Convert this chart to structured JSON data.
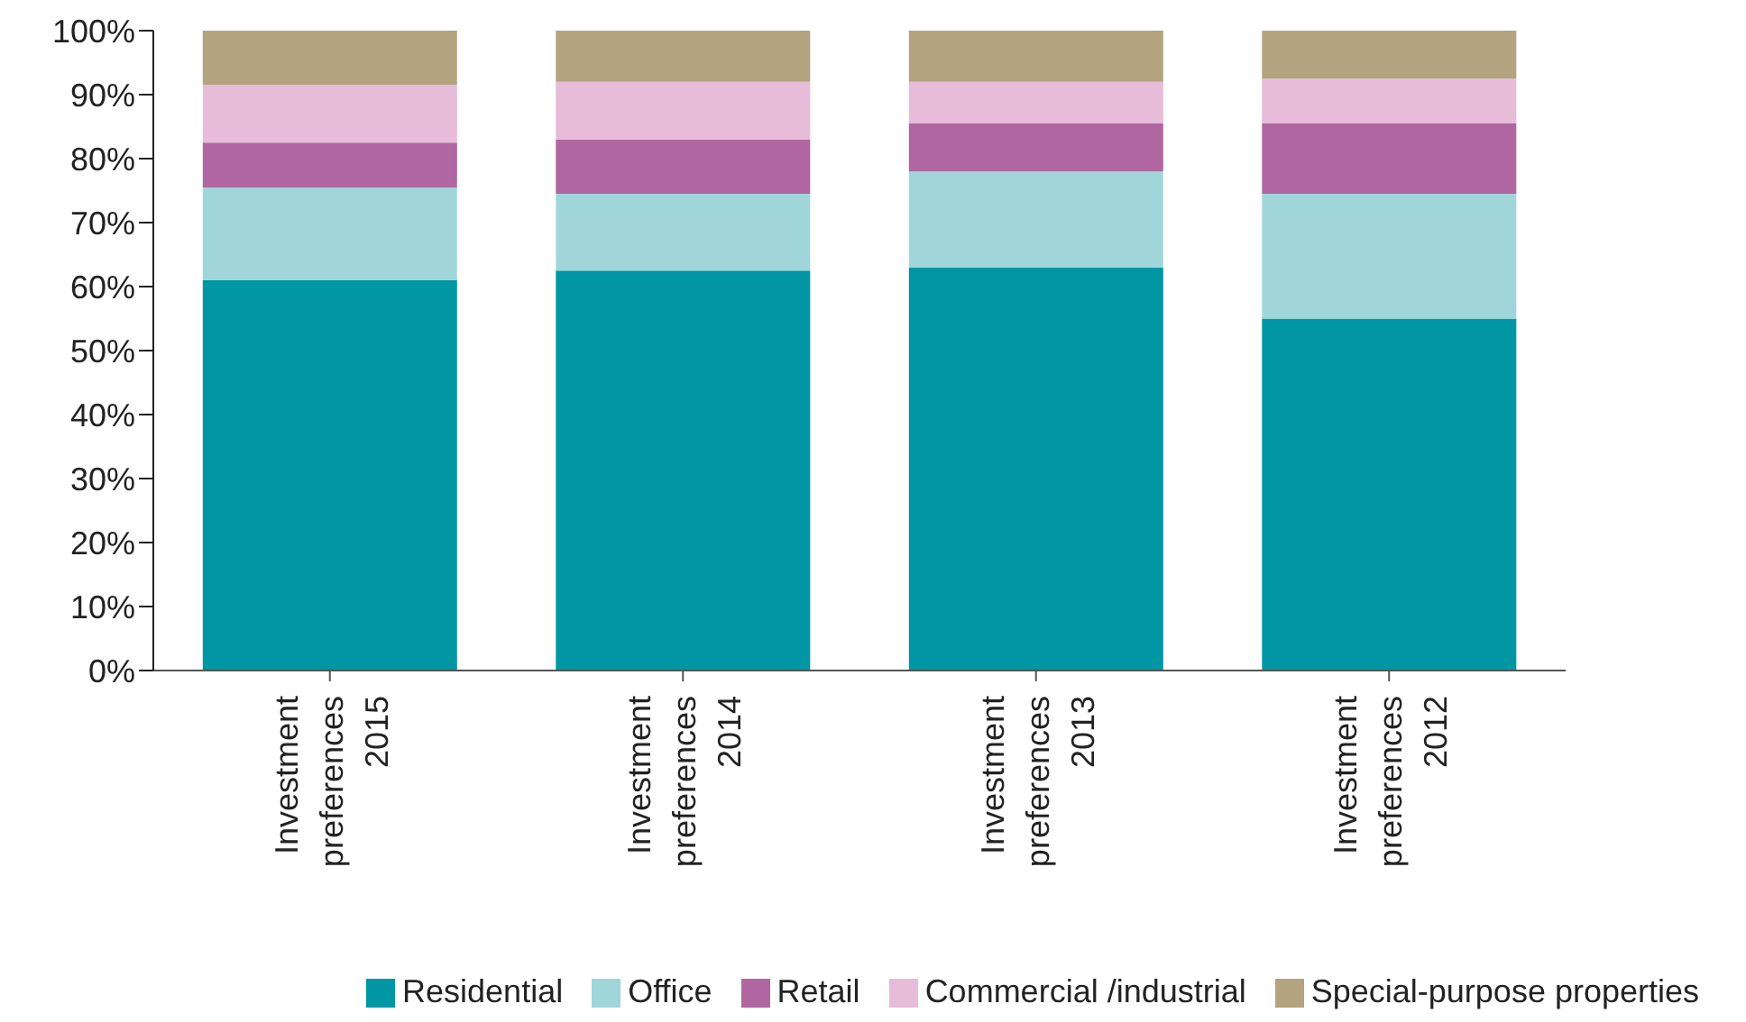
{
  "chart_data": {
    "type": "bar",
    "stacked": true,
    "categories": [
      "Investment\npreferences\n2015",
      "Investment\npreferences\n2014",
      "Investment\npreferences\n2013",
      "Investment\npreferences\n2012"
    ],
    "series": [
      {
        "name": "Residential",
        "color": "#0096a3",
        "values": [
          61,
          62.5,
          63,
          55
        ]
      },
      {
        "name": "Office",
        "color": "#a0d6da",
        "values": [
          14.5,
          12,
          15,
          19.5
        ]
      },
      {
        "name": "Retail",
        "color": "#b066a0",
        "values": [
          7,
          8.5,
          7.5,
          11
        ]
      },
      {
        "name": "Commercial /industrial",
        "color": "#e6bcd8",
        "values": [
          9,
          9,
          6.5,
          7
        ]
      },
      {
        "name": "Special-purpose properties",
        "color": "#b3a37f",
        "values": [
          8.5,
          8,
          8,
          7.5
        ]
      }
    ],
    "ylim": [
      0,
      100
    ],
    "yticks": [
      {
        "value": 0,
        "label": "0%"
      },
      {
        "value": 10,
        "label": "10%"
      },
      {
        "value": 20,
        "label": "20%"
      },
      {
        "value": 30,
        "label": "30%"
      },
      {
        "value": 40,
        "label": "40%"
      },
      {
        "value": 50,
        "label": "50%"
      },
      {
        "value": 60,
        "label": "60%"
      },
      {
        "value": 70,
        "label": "70%"
      },
      {
        "value": 80,
        "label": "80%"
      },
      {
        "value": 90,
        "label": "90%"
      },
      {
        "value": 100,
        "label": "100%"
      }
    ],
    "grid": false,
    "legend": "bottom right"
  }
}
